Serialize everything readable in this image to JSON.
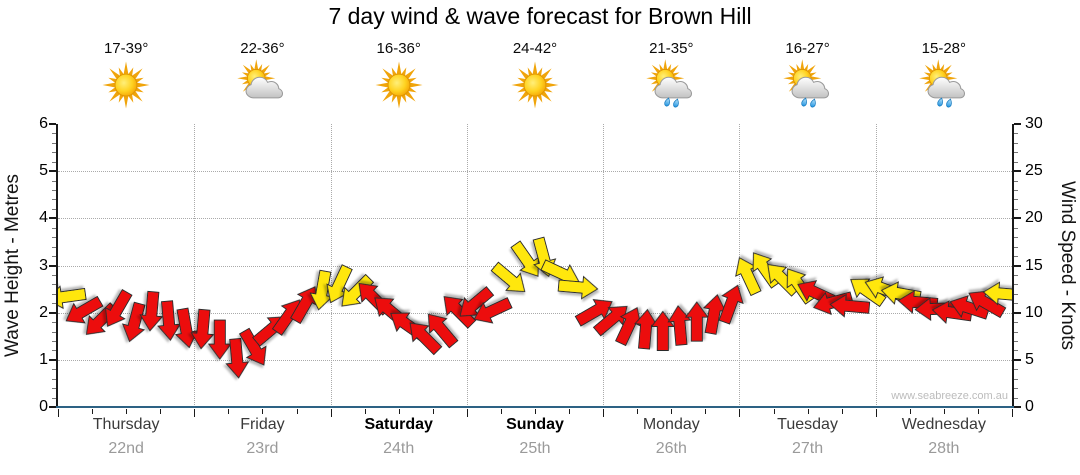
{
  "title": "7 day wind & wave forecast for Brown Hill",
  "watermark": "www.seabreeze.com.au",
  "days": [
    {
      "name": "Thursday",
      "date": "22nd",
      "temp": "17-39°",
      "icon": "sunny",
      "weekend": false
    },
    {
      "name": "Friday",
      "date": "23rd",
      "temp": "22-36°",
      "icon": "partly-cloudy",
      "weekend": false
    },
    {
      "name": "Saturday",
      "date": "24th",
      "temp": "16-36°",
      "icon": "sunny",
      "weekend": true
    },
    {
      "name": "Sunday",
      "date": "25th",
      "temp": "24-42°",
      "icon": "sunny",
      "weekend": true
    },
    {
      "name": "Monday",
      "date": "26th",
      "temp": "21-35°",
      "icon": "showers",
      "weekend": false
    },
    {
      "name": "Tuesday",
      "date": "27th",
      "temp": "16-27°",
      "icon": "showers",
      "weekend": false
    },
    {
      "name": "Wednesday",
      "date": "28th",
      "temp": "15-28°",
      "icon": "showers",
      "weekend": false
    }
  ],
  "chart_data": {
    "type": "wind-arrows",
    "title": "7 day wind & wave forecast for Brown Hill",
    "x_categories": [
      "Thursday 22nd",
      "Friday 23rd",
      "Saturday 24th",
      "Sunday 25th",
      "Monday 26th",
      "Tuesday 27th",
      "Wednesday 28th"
    ],
    "left_axis": {
      "label": "Wave Height - Metres",
      "min": 0,
      "max": 6,
      "major_tick": 1,
      "minor_tick": 0.2
    },
    "right_axis": {
      "label": "Wind Speed - Knots",
      "min": 0,
      "max": 30,
      "major_tick": 5,
      "minor_tick": 1
    },
    "grid": {
      "horizontal_lines_at": [
        1,
        2,
        3,
        4,
        5
      ],
      "vertical_lines": "day-boundaries",
      "style": "dotted"
    },
    "arrow_colors": {
      "r": "#ec0d0d",
      "y": "#ffe711"
    },
    "arrow_fields": [
      "day_index",
      "slot_3h",
      "wind_knots",
      "direction_deg_cw_from_east",
      "color"
    ],
    "arrows": [
      [
        0,
        0,
        11.7,
        172,
        "y"
      ],
      [
        0,
        1,
        10.2,
        150,
        "r"
      ],
      [
        0,
        2,
        9.2,
        135,
        "r"
      ],
      [
        0,
        3,
        10.4,
        120,
        "r"
      ],
      [
        0,
        4,
        9.0,
        105,
        "r"
      ],
      [
        0,
        5,
        10.2,
        95,
        "r"
      ],
      [
        0,
        6,
        9.2,
        85,
        "r"
      ],
      [
        0,
        7,
        8.4,
        80,
        "r"
      ],
      [
        1,
        0,
        8.3,
        95,
        "r"
      ],
      [
        1,
        1,
        7.2,
        90,
        "r"
      ],
      [
        1,
        2,
        5.2,
        85,
        "r"
      ],
      [
        1,
        3,
        6.3,
        60,
        "r"
      ],
      [
        1,
        4,
        8.2,
        320,
        "r"
      ],
      [
        1,
        5,
        9.6,
        305,
        "r"
      ],
      [
        1,
        6,
        10.9,
        300,
        "r"
      ],
      [
        1,
        7,
        12.4,
        100,
        "y"
      ],
      [
        2,
        0,
        13.0,
        115,
        "y"
      ],
      [
        2,
        1,
        12.2,
        135,
        "y"
      ],
      [
        2,
        2,
        11.6,
        225,
        "r"
      ],
      [
        2,
        3,
        10.2,
        220,
        "r"
      ],
      [
        2,
        4,
        8.7,
        215,
        "r"
      ],
      [
        2,
        5,
        7.4,
        225,
        "r"
      ],
      [
        2,
        6,
        8.2,
        230,
        "r"
      ],
      [
        2,
        7,
        10.2,
        225,
        "r"
      ],
      [
        3,
        0,
        11.0,
        140,
        "r"
      ],
      [
        3,
        1,
        10.2,
        155,
        "r"
      ],
      [
        3,
        2,
        13.6,
        40,
        "y"
      ],
      [
        3,
        3,
        15.6,
        55,
        "y"
      ],
      [
        3,
        4,
        15.9,
        75,
        "y"
      ],
      [
        3,
        5,
        14.2,
        25,
        "y"
      ],
      [
        3,
        6,
        12.7,
        5,
        "y"
      ],
      [
        3,
        7,
        10.1,
        330,
        "r"
      ],
      [
        4,
        0,
        9.3,
        320,
        "r"
      ],
      [
        4,
        1,
        8.6,
        295,
        "r"
      ],
      [
        4,
        2,
        8.2,
        275,
        "r"
      ],
      [
        4,
        3,
        8.0,
        270,
        "r"
      ],
      [
        4,
        4,
        8.6,
        265,
        "r"
      ],
      [
        4,
        5,
        9.0,
        270,
        "r"
      ],
      [
        4,
        6,
        9.8,
        280,
        "r"
      ],
      [
        4,
        7,
        10.9,
        290,
        "r"
      ],
      [
        5,
        0,
        13.9,
        245,
        "y"
      ],
      [
        5,
        1,
        14.6,
        235,
        "y"
      ],
      [
        5,
        2,
        13.6,
        225,
        "y"
      ],
      [
        5,
        3,
        12.9,
        235,
        "y"
      ],
      [
        5,
        4,
        12.1,
        205,
        "r"
      ],
      [
        5,
        5,
        11.1,
        165,
        "r"
      ],
      [
        5,
        6,
        10.7,
        185,
        "r"
      ],
      [
        5,
        7,
        12.3,
        215,
        "y"
      ],
      [
        6,
        0,
        12.5,
        200,
        "y"
      ],
      [
        6,
        1,
        12.0,
        190,
        "y"
      ],
      [
        6,
        2,
        11.1,
        185,
        "r"
      ],
      [
        6,
        3,
        10.4,
        178,
        "r"
      ],
      [
        6,
        4,
        10.0,
        188,
        "r"
      ],
      [
        6,
        5,
        10.5,
        198,
        "r"
      ],
      [
        6,
        6,
        11.0,
        210,
        "r"
      ],
      [
        6,
        7,
        12.0,
        185,
        "y"
      ]
    ]
  }
}
